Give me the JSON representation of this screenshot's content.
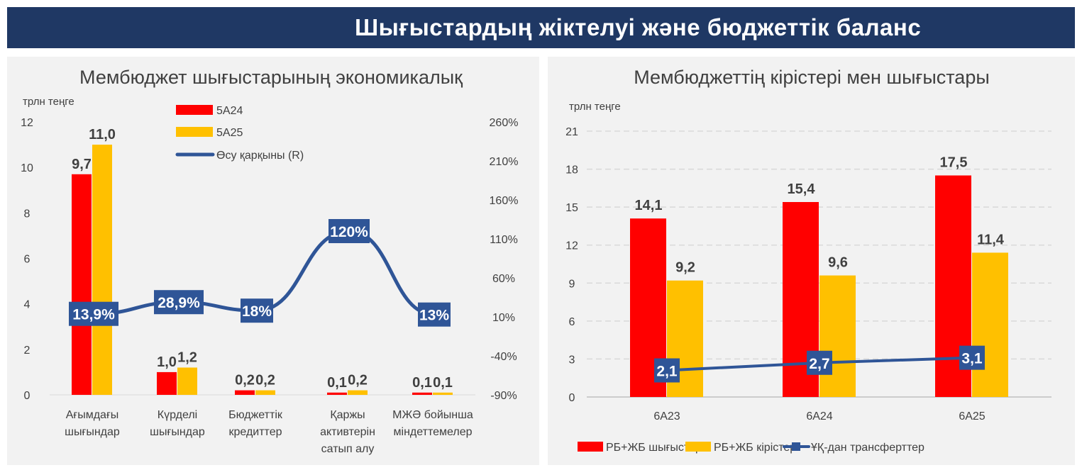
{
  "header": {
    "title": "Шығыстардың жіктелуі және бюджеттік баланс"
  },
  "colors": {
    "red": "#ff0000",
    "yellow": "#ffc000",
    "blue": "#2f5597",
    "navy": "#1f3864"
  },
  "chart_data": [
    {
      "type": "bar",
      "title": "Мембюджет шығыстарының экономикалық",
      "ylabel": "трлн теңге",
      "ylim": [
        0,
        12
      ],
      "yticks": [
        "0",
        "2",
        "4",
        "6",
        "8",
        "10",
        "12"
      ],
      "y2lim": [
        -90,
        260
      ],
      "y2ticks": [
        "-90%",
        "-40%",
        "10%",
        "60%",
        "110%",
        "160%",
        "210%",
        "260%"
      ],
      "categories": [
        [
          "Ағымдағы",
          "шығындар"
        ],
        [
          "Күрделі",
          "шығындар"
        ],
        [
          "Бюджеттік",
          "кредиттер"
        ],
        [
          "Қаржы",
          "активтерін",
          "сатып алу"
        ],
        [
          "МЖӘ бойынша",
          "міндеттемелер"
        ]
      ],
      "series": [
        {
          "name": "5A24",
          "values": [
            9.7,
            1.0,
            0.2,
            0.1,
            0.1
          ],
          "labels": [
            "9,7",
            "1,0",
            "0,2",
            "0,1",
            "0,1"
          ]
        },
        {
          "name": "5A25",
          "values": [
            11.0,
            1.2,
            0.2,
            0.2,
            0.1
          ],
          "labels": [
            "11,0",
            "1,2",
            "0,2",
            "0,2",
            "0,1"
          ]
        },
        {
          "name": "Өсу қарқыны (R)",
          "type": "line",
          "axis": "right",
          "values": [
            13.9,
            28.9,
            18,
            120,
            13
          ],
          "labels": [
            "13,9%",
            "28,9%",
            "18%",
            "120%",
            "13%"
          ]
        }
      ],
      "legend": "top-center"
    },
    {
      "type": "bar",
      "title": "Мембюджеттің кірістері мен шығыстары",
      "ylabel": "трлн теңге",
      "ylim": [
        0,
        21
      ],
      "yticks": [
        "0",
        "3",
        "6",
        "9",
        "12",
        "15",
        "18",
        "21"
      ],
      "categories": [
        "6A23",
        "6A24",
        "6A25"
      ],
      "series": [
        {
          "name": "РБ+ЖБ шығыстары",
          "values": [
            14.1,
            15.4,
            17.5
          ],
          "labels": [
            "14,1",
            "15,4",
            "17,5"
          ]
        },
        {
          "name": "РБ+ЖБ кірістері",
          "values": [
            9.2,
            9.6,
            11.4
          ],
          "labels": [
            "9,2",
            "9,6",
            "11,4"
          ]
        },
        {
          "name": "ҰҚ-дан трансферттер",
          "type": "line",
          "values": [
            2.1,
            2.7,
            3.1
          ],
          "labels": [
            "2,1",
            "2,7",
            "3,1"
          ]
        }
      ],
      "grid": true,
      "legend": "bottom"
    }
  ]
}
